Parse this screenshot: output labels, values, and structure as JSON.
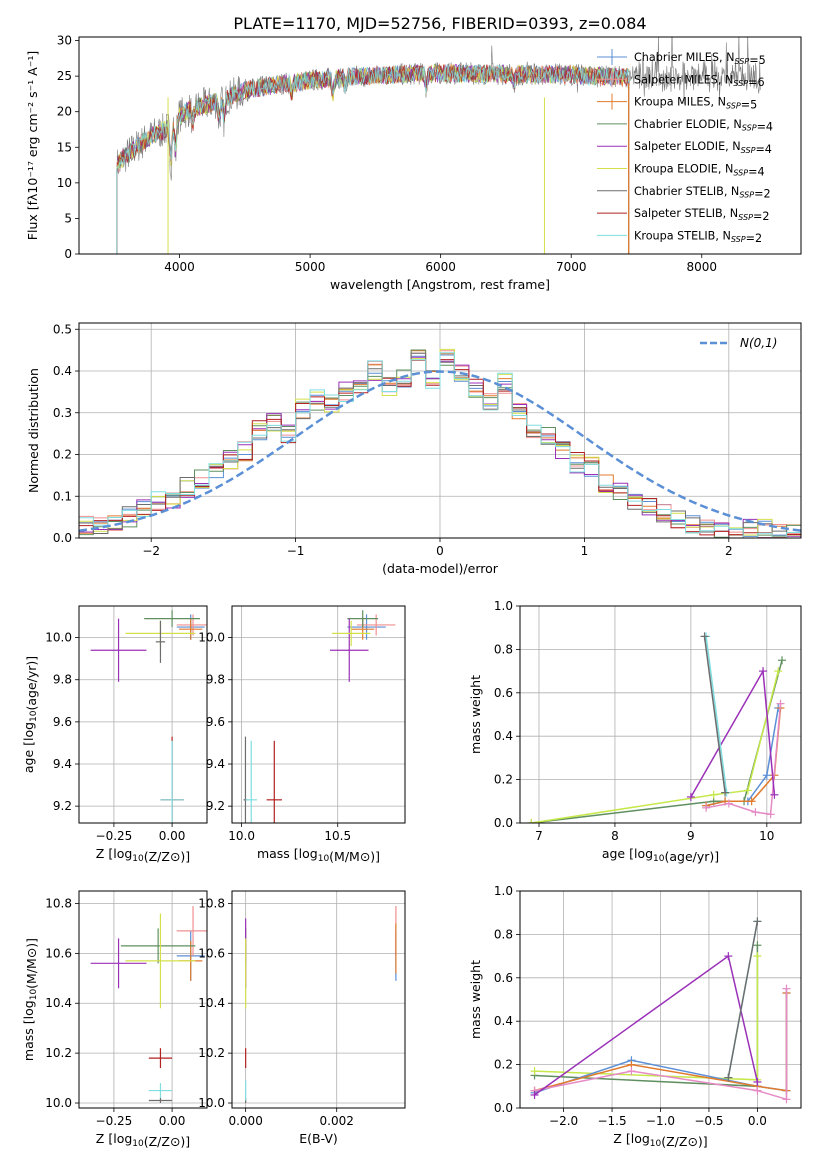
{
  "title": "PLATE=1170, MJD=52756, FIBERID=0393, z=0.084",
  "colors": {
    "ch_miles": "#5b8fd6",
    "sa_miles": "#f08f8f",
    "kr_miles": "#e07b2d",
    "ch_elodie": "#5f8f5f",
    "sa_elodie": "#9b30b8",
    "kr_elodie": "#d4e04a",
    "ch_stelib": "#6d6d6d",
    "sa_stelib": "#b22222",
    "kr_stelib": "#80dde0",
    "normal": "#5b8fd6",
    "kr_miles_w": "#e07b2d",
    "sa_miles_w": "#e58ac5",
    "kr_elodie_w": "#c6e84a"
  },
  "chart_data": [
    {
      "id": "spectrum",
      "type": "line",
      "title": "PLATE=1170, MJD=52756, FIBERID=0393, z=0.084",
      "xlabel": "wavelength [Angstrom, rest frame]",
      "ylabel": "Flux [fλ10⁻¹⁷ erg cm⁻² s⁻¹ A⁻¹]",
      "xlim": [
        3230,
        8760
      ],
      "ylim": [
        0,
        30.5
      ],
      "xticks": [
        4000,
        5000,
        6000,
        7000,
        8000
      ],
      "xtick_labels": [
        "4000",
        "5000",
        "6000",
        "7000",
        "8000"
      ],
      "yticks": [
        0,
        5,
        10,
        15,
        20,
        25,
        30
      ],
      "ytick_labels": [
        "0",
        "5",
        "10",
        "15",
        "20",
        "25",
        "30"
      ],
      "legend": "top-right",
      "continuum": [
        [
          3520,
          12.5
        ],
        [
          3600,
          14.0
        ],
        [
          3700,
          15.5
        ],
        [
          3800,
          16.8
        ],
        [
          3900,
          17.5
        ],
        [
          4000,
          19.5
        ],
        [
          4100,
          20.5
        ],
        [
          4300,
          21.5
        ],
        [
          4500,
          23.0
        ],
        [
          4800,
          24.0
        ],
        [
          5200,
          24.8
        ],
        [
          5600,
          25.2
        ],
        [
          6000,
          25.4
        ],
        [
          6500,
          25.3
        ],
        [
          7000,
          25.2
        ],
        [
          7400,
          24.8
        ]
      ],
      "series": [
        {
          "name": "Chabrier MILES, N$_{SSP}$=5",
          "color_key": "ch_miles"
        },
        {
          "name": "Salpeter MILES, N$_{SSP}$=6",
          "color_key": "sa_miles"
        },
        {
          "name": "Kroupa MILES, N$_{SSP}$=5",
          "color_key": "kr_miles"
        },
        {
          "name": "Chabrier ELODIE, N$_{SSP}$=4",
          "color_key": "ch_elodie"
        },
        {
          "name": "Salpeter ELODIE, N$_{SSP}$=4",
          "color_key": "sa_elodie"
        },
        {
          "name": "Kroupa ELODIE, N$_{SSP}$=4",
          "color_key": "kr_elodie"
        },
        {
          "name": "Chabrier STELIB, N$_{SSP}$=2",
          "color_key": "ch_stelib"
        },
        {
          "name": "Salpeter STELIB, N$_{SSP}$=2",
          "color_key": "sa_stelib"
        },
        {
          "name": "Kroupa STELIB, N$_{SSP}$=2",
          "color_key": "kr_stelib"
        }
      ]
    },
    {
      "id": "residuals",
      "type": "bar",
      "xlabel": "(data-model)/error",
      "ylabel": "Normed distribution",
      "xlim": [
        -2.5,
        2.5
      ],
      "ylim": [
        0,
        0.515
      ],
      "grid": true,
      "xticks": [
        -2,
        -1,
        0,
        1,
        2
      ],
      "xtick_labels": [
        "−2",
        "−1",
        "0",
        "1",
        "2"
      ],
      "yticks": [
        0,
        0.1,
        0.2,
        0.3,
        0.4,
        0.5
      ],
      "ytick_labels": [
        "0.0",
        "0.1",
        "0.2",
        "0.3",
        "0.4",
        "0.5"
      ],
      "legend": "top-right",
      "normal_label": "N(0,1)",
      "bin_width": 0.1,
      "base_hist": [
        0.03,
        0.03,
        0.04,
        0.04,
        0.05,
        0.07,
        0.07,
        0.09,
        0.09,
        0.1,
        0.12,
        0.14,
        0.16,
        0.2,
        0.19,
        0.21,
        0.24,
        0.26,
        0.28,
        0.25,
        0.3,
        0.31,
        0.33,
        0.32,
        0.37,
        0.35,
        0.37,
        0.38,
        0.4,
        0.36,
        0.38,
        0.45,
        0.43,
        0.38,
        0.41,
        0.43,
        0.4,
        0.36,
        0.34,
        0.33,
        0.37,
        0.3,
        0.29,
        0.25,
        0.24,
        0.22,
        0.21,
        0.18,
        0.17,
        0.14,
        0.13,
        0.11,
        0.09,
        0.08,
        0.07,
        0.06,
        0.05,
        0.04,
        0.03,
        0.03,
        0.02,
        0.02,
        0.02,
        0.02,
        0.02,
        0.02,
        0.01,
        0.01,
        0.01,
        0.01
      ],
      "series_keys": [
        "ch_miles",
        "sa_miles",
        "kr_miles",
        "ch_elodie",
        "sa_elodie",
        "kr_elodie",
        "ch_stelib",
        "sa_stelib",
        "kr_stelib"
      ]
    },
    {
      "id": "age_vs_Z",
      "type": "scatter",
      "xlabel": "Z [log10(Z/Z⊙)]",
      "ylabel": "age  [log10(age/yr)]",
      "xlim": [
        -0.4,
        0.15
      ],
      "ylim": [
        9.12,
        10.15
      ],
      "grid": true,
      "xticks": [
        -0.25,
        0.0
      ],
      "xtick_labels": [
        "−0.25",
        "0.00"
      ],
      "yticks": [
        9.2,
        9.4,
        9.6,
        9.8,
        10.0
      ],
      "ytick_labels": [
        "9.2",
        "9.4",
        "9.6",
        "9.8",
        "10.0"
      ],
      "points": [
        {
          "k": "ch_miles",
          "x": 0.08,
          "y": 10.05,
          "xe": 0.06,
          "ye": 0.06
        },
        {
          "k": "sa_miles",
          "x": 0.09,
          "y": 10.06,
          "xe": 0.07,
          "ye": 0.05
        },
        {
          "k": "kr_miles",
          "x": 0.08,
          "y": 10.04,
          "xe": 0.05,
          "ye": 0.05
        },
        {
          "k": "ch_elodie",
          "x": 0.0,
          "y": 10.09,
          "xe": 0.12,
          "ye": 0.04
        },
        {
          "k": "sa_elodie",
          "x": -0.23,
          "y": 9.94,
          "xe": 0.12,
          "ye": 0.15
        },
        {
          "k": "kr_elodie",
          "x": -0.05,
          "y": 10.02,
          "xe": 0.15,
          "ye": 0.06
        },
        {
          "k": "ch_stelib",
          "x": -0.05,
          "y": 9.98,
          "xe": 0.02,
          "ye": 0.1
        },
        {
          "k": "sa_stelib",
          "x": 0.0,
          "y": 9.23,
          "xe": 0.05,
          "ye": 0.3
        },
        {
          "k": "kr_stelib",
          "x": 0.0,
          "y": 9.23,
          "xe": 0.05,
          "ye": 0.28
        }
      ]
    },
    {
      "id": "age_vs_mass",
      "type": "scatter",
      "xlabel": "mass [log10(M/M⊙)]",
      "ylabel": "",
      "xlim": [
        9.95,
        10.85
      ],
      "ylim": [
        9.12,
        10.15
      ],
      "grid": true,
      "xticks": [
        10.0,
        10.5
      ],
      "xtick_labels": [
        "10.0",
        "10.5"
      ],
      "yticks": [
        9.2,
        9.4,
        9.6,
        9.8,
        10.0
      ],
      "ytick_labels": [
        "9.2",
        "9.4",
        "9.6",
        "9.8",
        "10.0"
      ],
      "points": [
        {
          "k": "ch_miles",
          "x": 10.65,
          "y": 10.05,
          "xe": 0.1,
          "ye": 0.06
        },
        {
          "k": "sa_miles",
          "x": 10.7,
          "y": 10.06,
          "xe": 0.1,
          "ye": 0.05
        },
        {
          "k": "kr_miles",
          "x": 10.63,
          "y": 10.04,
          "xe": 0.06,
          "ye": 0.05
        },
        {
          "k": "ch_elodie",
          "x": 10.63,
          "y": 10.09,
          "xe": 0.08,
          "ye": 0.04
        },
        {
          "k": "sa_elodie",
          "x": 10.56,
          "y": 9.94,
          "xe": 0.1,
          "ye": 0.15
        },
        {
          "k": "kr_elodie",
          "x": 10.57,
          "y": 10.02,
          "xe": 0.1,
          "ye": 0.06
        },
        {
          "k": "ch_stelib",
          "x": 10.02,
          "y": 9.23,
          "xe": 0.01,
          "ye": 0.3
        },
        {
          "k": "sa_stelib",
          "x": 10.17,
          "y": 9.23,
          "xe": 0.04,
          "ye": 0.28
        },
        {
          "k": "kr_stelib",
          "x": 10.05,
          "y": 9.23,
          "xe": 0.03,
          "ye": 0.28
        }
      ]
    },
    {
      "id": "weight_vs_age",
      "type": "line",
      "xlabel": "age  [log10(age/yr)]",
      "ylabel": "mass weight",
      "xlim": [
        6.75,
        10.45
      ],
      "ylim": [
        0,
        1.0
      ],
      "grid": true,
      "xticks": [
        7,
        8,
        9,
        10
      ],
      "xtick_labels": [
        "7",
        "8",
        "9",
        "10"
      ],
      "yticks": [
        0,
        0.2,
        0.4,
        0.6,
        0.8,
        1.0
      ],
      "ytick_labels": [
        "0.0",
        "0.2",
        "0.4",
        "0.6",
        "0.8",
        "1.0"
      ],
      "series": [
        {
          "k": "ch_elodie",
          "pts": [
            [
              6.9,
              0.0
            ],
            [
              9.3,
              0.1
            ],
            [
              9.7,
              0.1
            ],
            [
              10.2,
              0.75
            ]
          ]
        },
        {
          "k": "kr_elodie_w",
          "pts": [
            [
              6.9,
              0.0
            ],
            [
              9.3,
              0.13
            ],
            [
              9.75,
              0.15
            ],
            [
              10.15,
              0.7
            ]
          ]
        },
        {
          "k": "ch_miles",
          "pts": [
            [
              9.2,
              0.08
            ],
            [
              9.45,
              0.1
            ],
            [
              9.75,
              0.1
            ],
            [
              10.0,
              0.22
            ],
            [
              10.15,
              0.53
            ]
          ]
        },
        {
          "k": "kr_miles_w",
          "pts": [
            [
              9.2,
              0.08
            ],
            [
              9.45,
              0.1
            ],
            [
              9.8,
              0.1
            ],
            [
              10.1,
              0.22
            ],
            [
              10.18,
              0.53
            ]
          ]
        },
        {
          "k": "sa_miles_w",
          "pts": [
            [
              9.2,
              0.07
            ],
            [
              9.5,
              0.09
            ],
            [
              9.85,
              0.05
            ],
            [
              10.05,
              0.04
            ],
            [
              10.18,
              0.55
            ]
          ]
        },
        {
          "k": "sa_elodie",
          "pts": [
            [
              9.0,
              0.12
            ],
            [
              9.95,
              0.7
            ],
            [
              10.1,
              0.13
            ]
          ]
        },
        {
          "k": "kr_stelib",
          "pts": [
            [
              9.2,
              0.86
            ],
            [
              9.47,
              0.14
            ]
          ]
        },
        {
          "k": "ch_stelib",
          "pts": [
            [
              9.18,
              0.86
            ],
            [
              9.45,
              0.14
            ]
          ]
        }
      ]
    },
    {
      "id": "mass_vs_Z",
      "type": "scatter",
      "xlabel": "Z [log10(Z/Z⊙)]",
      "ylabel": "mass [log10(M/M⊙)]",
      "xlim": [
        -0.4,
        0.15
      ],
      "ylim": [
        9.98,
        10.85
      ],
      "grid": true,
      "xticks": [
        -0.25,
        0.0
      ],
      "xtick_labels": [
        "−0.25",
        "0.00"
      ],
      "yticks": [
        10.0,
        10.2,
        10.4,
        10.6,
        10.8
      ],
      "ytick_labels": [
        "10.0",
        "10.2",
        "10.4",
        "10.6",
        "10.8"
      ],
      "points": [
        {
          "k": "ch_miles",
          "x": 0.08,
          "y": 10.59,
          "xe": 0.06,
          "ye": 0.1
        },
        {
          "k": "sa_miles",
          "x": 0.09,
          "y": 10.69,
          "xe": 0.07,
          "ye": 0.1
        },
        {
          "k": "kr_miles",
          "x": 0.08,
          "y": 10.57,
          "xe": 0.05,
          "ye": 0.08
        },
        {
          "k": "ch_elodie",
          "x": -0.06,
          "y": 10.63,
          "xe": 0.16,
          "ye": 0.07
        },
        {
          "k": "sa_elodie",
          "x": -0.23,
          "y": 10.56,
          "xe": 0.12,
          "ye": 0.1
        },
        {
          "k": "kr_elodie",
          "x": -0.05,
          "y": 10.57,
          "xe": 0.15,
          "ye": 0.19
        },
        {
          "k": "ch_stelib",
          "x": -0.05,
          "y": 10.01,
          "xe": 0.05,
          "ye": 0.01
        },
        {
          "k": "sa_stelib",
          "x": -0.05,
          "y": 10.18,
          "xe": 0.05,
          "ye": 0.04
        },
        {
          "k": "kr_stelib",
          "x": -0.05,
          "y": 10.05,
          "xe": 0.05,
          "ye": 0.03
        }
      ]
    },
    {
      "id": "mass_vs_ebv",
      "type": "scatter",
      "xlabel": "E(B-V)",
      "ylabel": "",
      "xlim": [
        -0.0003,
        0.0035
      ],
      "ylim": [
        9.98,
        10.85
      ],
      "grid": true,
      "xticks": [
        0.0,
        0.002
      ],
      "xtick_labels": [
        "0.000",
        "0.002"
      ],
      "yticks": [
        10.0,
        10.2,
        10.4,
        10.6,
        10.8
      ],
      "ytick_labels": [
        "10.0",
        "10.2",
        "10.4",
        "10.6",
        "10.8"
      ],
      "points": [
        {
          "k": "ch_miles",
          "x": 0.0033,
          "y": 10.59,
          "xe": 0.0,
          "ye": 0.1
        },
        {
          "k": "sa_miles",
          "x": 0.0033,
          "y": 10.69,
          "xe": 0.0,
          "ye": 0.1
        },
        {
          "k": "kr_miles",
          "x": 0.0033,
          "y": 10.62,
          "xe": 0.0,
          "ye": 0.1
        },
        {
          "k": "ch_elodie",
          "x": 0.0,
          "y": 10.63,
          "xe": 0.0,
          "ye": 0.07
        },
        {
          "k": "sa_elodie",
          "x": 0.0,
          "y": 10.6,
          "xe": 0.0,
          "ye": 0.14
        },
        {
          "k": "kr_elodie",
          "x": 0.0,
          "y": 10.52,
          "xe": 0.0,
          "ye": 0.14
        },
        {
          "k": "ch_stelib",
          "x": 0.0,
          "y": 10.01,
          "xe": 0.0,
          "ye": 0.01
        },
        {
          "k": "sa_stelib",
          "x": 0.0,
          "y": 10.18,
          "xe": 0.0,
          "ye": 0.04
        },
        {
          "k": "kr_stelib",
          "x": 0.0,
          "y": 10.05,
          "xe": 0.0,
          "ye": 0.04
        }
      ]
    },
    {
      "id": "weight_vs_Z",
      "type": "line",
      "xlabel": "Z [log10(Z/Z⊙)]",
      "ylabel": "mass weight",
      "xlim": [
        -2.45,
        0.45
      ],
      "ylim": [
        0,
        1.0
      ],
      "grid": true,
      "xticks": [
        -2.0,
        -1.5,
        -1.0,
        -0.5,
        0.0
      ],
      "xtick_labels": [
        "−2.0",
        "−1.5",
        "−1.0",
        "−0.5",
        "0.0"
      ],
      "yticks": [
        0,
        0.2,
        0.4,
        0.6,
        0.8,
        1.0
      ],
      "ytick_labels": [
        "0.0",
        "0.2",
        "0.4",
        "0.6",
        "0.8",
        "1.0"
      ],
      "series": [
        {
          "k": "ch_elodie",
          "pts": [
            [
              -2.3,
              0.15
            ],
            [
              0.0,
              0.1
            ],
            [
              0.0,
              0.75
            ]
          ]
        },
        {
          "k": "kr_elodie_w",
          "pts": [
            [
              -2.3,
              0.17
            ],
            [
              0.0,
              0.13
            ],
            [
              0.0,
              0.7
            ]
          ]
        },
        {
          "k": "ch_miles",
          "pts": [
            [
              -2.3,
              0.07
            ],
            [
              -1.3,
              0.22
            ],
            [
              0.0,
              0.1
            ],
            [
              0.3,
              0.08
            ],
            [
              0.3,
              0.53
            ]
          ]
        },
        {
          "k": "kr_miles_w",
          "pts": [
            [
              -2.3,
              0.08
            ],
            [
              -1.3,
              0.2
            ],
            [
              0.0,
              0.1
            ],
            [
              0.3,
              0.08
            ],
            [
              0.3,
              0.53
            ]
          ]
        },
        {
          "k": "sa_miles_w",
          "pts": [
            [
              -2.3,
              0.08
            ],
            [
              -1.3,
              0.17
            ],
            [
              0.0,
              0.08
            ],
            [
              0.3,
              0.04
            ],
            [
              0.3,
              0.55
            ]
          ]
        },
        {
          "k": "sa_elodie",
          "pts": [
            [
              -2.3,
              0.06
            ],
            [
              -0.3,
              0.7
            ],
            [
              0.0,
              0.12
            ]
          ]
        },
        {
          "k": "kr_stelib",
          "pts": [
            [
              -0.3,
              0.14
            ],
            [
              0.0,
              0.86
            ]
          ]
        },
        {
          "k": "ch_stelib",
          "pts": [
            [
              -0.3,
              0.14
            ],
            [
              0.0,
              0.86
            ]
          ]
        }
      ]
    }
  ]
}
